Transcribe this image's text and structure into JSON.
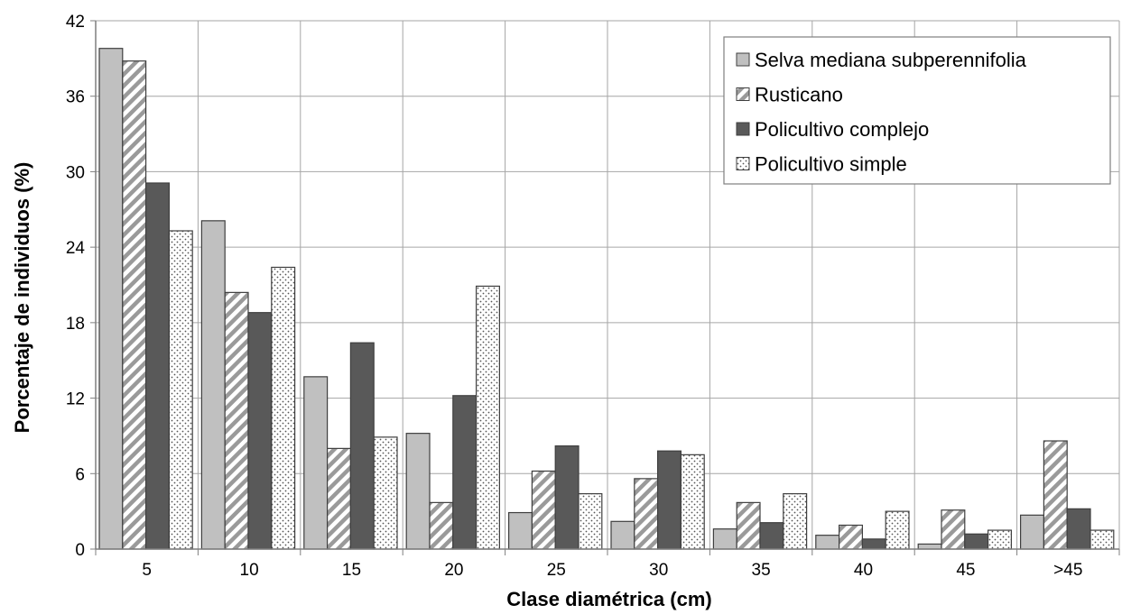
{
  "chart_data": {
    "type": "bar",
    "title": "",
    "xlabel": "Clase diamétrica (cm)",
    "ylabel": "Porcentaje de individuos (%)",
    "ylim": [
      0,
      42
    ],
    "yticks": [
      0,
      6,
      12,
      18,
      24,
      30,
      36,
      42
    ],
    "grid": true,
    "legend_position": "top-right",
    "categories": [
      "5",
      "10",
      "15",
      "20",
      "25",
      "30",
      "35",
      "40",
      "45",
      ">45"
    ],
    "series": [
      {
        "name": "Selva mediana subperennifolia",
        "pattern": "solid-light-gray",
        "color": "#c0c0c0",
        "values": [
          39.8,
          26.1,
          13.7,
          9.2,
          2.9,
          2.2,
          1.6,
          1.1,
          0.4,
          2.7
        ]
      },
      {
        "name": "Rusticano",
        "pattern": "diagonal-stripes",
        "color": "#a6a6a6",
        "values": [
          38.8,
          20.4,
          8.0,
          3.7,
          6.2,
          5.6,
          3.7,
          1.9,
          3.1,
          8.6
        ]
      },
      {
        "name": "Policultivo complejo",
        "pattern": "solid-dark-gray",
        "color": "#595959",
        "values": [
          29.1,
          18.8,
          16.4,
          12.2,
          8.2,
          7.8,
          2.1,
          0.8,
          1.2,
          3.2
        ]
      },
      {
        "name": "Policultivo simple",
        "pattern": "dotted",
        "color": "#ffffff",
        "values": [
          25.3,
          22.4,
          8.9,
          20.9,
          4.4,
          7.5,
          4.4,
          3.0,
          1.5,
          1.5
        ]
      }
    ]
  }
}
